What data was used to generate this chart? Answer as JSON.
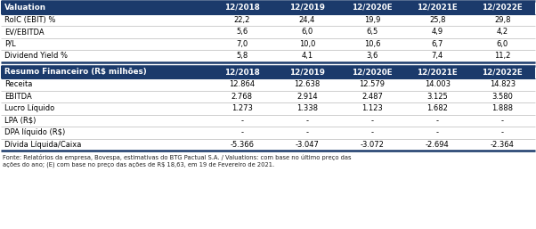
{
  "header1": "Valuation",
  "header2": "Resumo Financeiro (R$ milhões)",
  "columns": [
    "12/2018",
    "12/2019",
    "12/2020E",
    "12/2021E",
    "12/2022E"
  ],
  "section1_rows": [
    [
      "RoIC (EBIT) %",
      "22,2",
      "24,4",
      "19,9",
      "25,8",
      "29,8"
    ],
    [
      "EV/EBITDA",
      "5,6",
      "6,0",
      "6,5",
      "4,9",
      "4,2"
    ],
    [
      "P/L",
      "7,0",
      "10,0",
      "10,6",
      "6,7",
      "6,0"
    ],
    [
      "Dividend Yield %",
      "5,8",
      "4,1",
      "3,6",
      "7,4",
      "11,2"
    ]
  ],
  "section2_rows": [
    [
      "Receita",
      "12.864",
      "12.638",
      "12.579",
      "14.003",
      "14.823"
    ],
    [
      "EBITDA",
      "2.768",
      "2.914",
      "2.487",
      "3.125",
      "3.580"
    ],
    [
      "Lucro Líquido",
      "1.273",
      "1.338",
      "1.123",
      "1.682",
      "1.888"
    ],
    [
      "LPA (R$)",
      "-",
      "-",
      "-",
      "-",
      "-"
    ],
    [
      "DPA líquido (R$)",
      "-",
      "-",
      "-",
      "-",
      "-"
    ],
    [
      "Dívida Líquida/Caixa",
      "-5.366",
      "-3.047",
      "-3.072",
      "-2.694",
      "-2.364"
    ]
  ],
  "footer_line1": "Fonte: Relatórios da empresa, Bovespa, estimativas do BTG Pactual S.A. / Valuations: com base no último preço das",
  "footer_line2": "ações do ano; (E) com base no preço das ações de R$ 18,63, em 19 de Fevereiro de 2021.",
  "header_bg": "#1b3a6b",
  "header_text": "#ffffff",
  "row_text": "#000000",
  "sep_color": "#1b3a6b",
  "thin_line_color": "#aaaaaa",
  "table_bg": "#ffffff"
}
